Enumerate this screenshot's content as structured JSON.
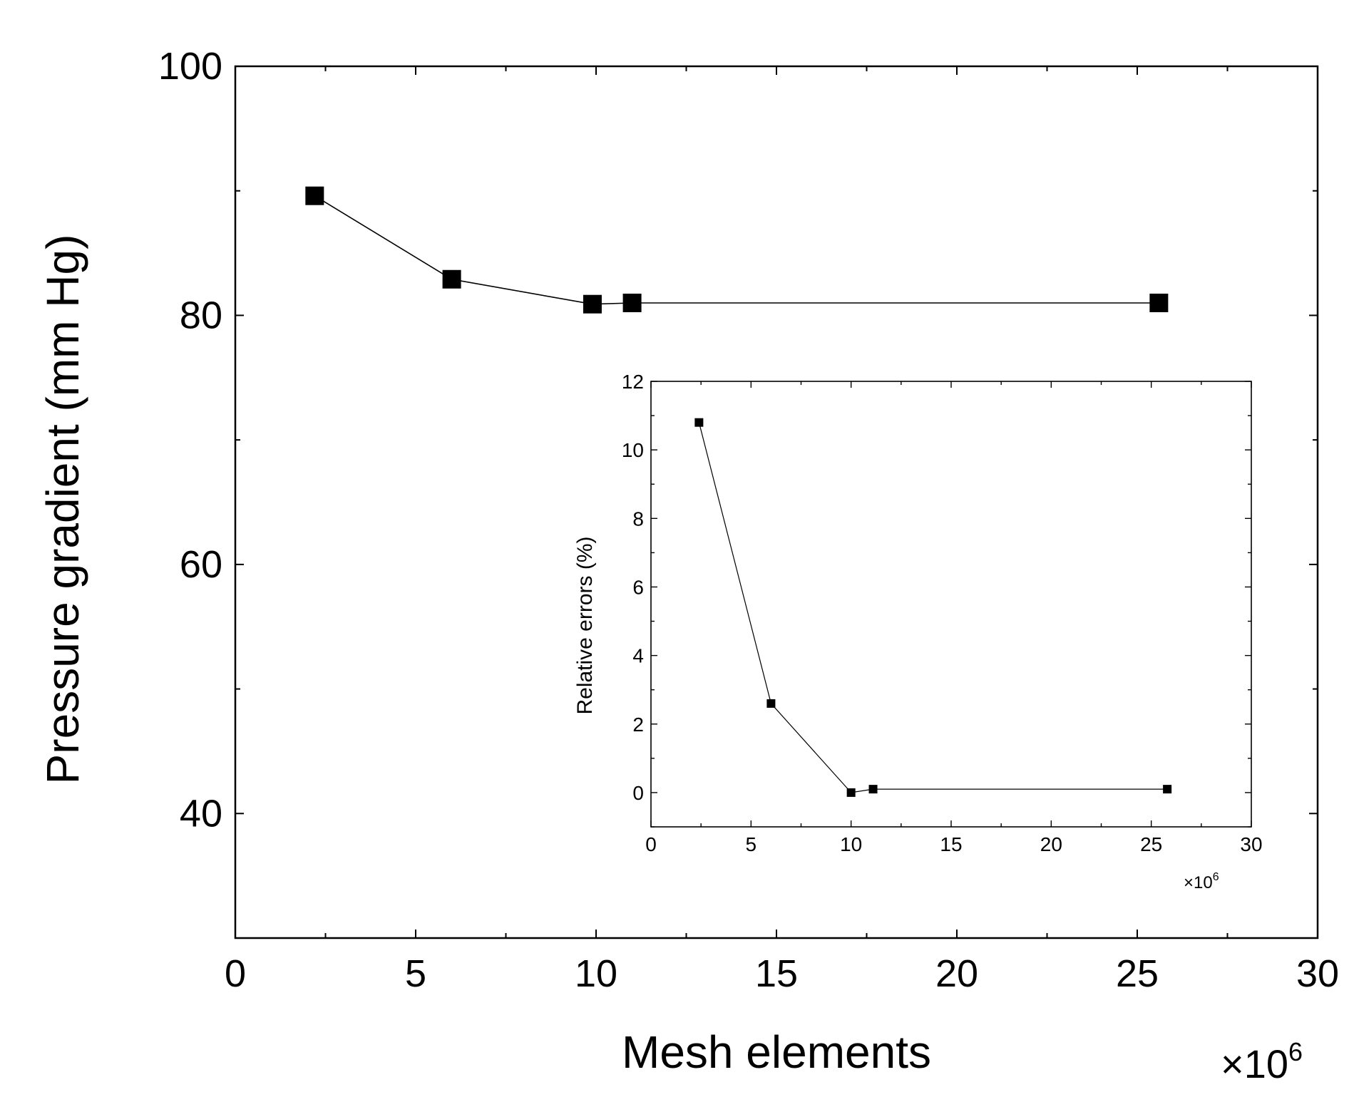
{
  "chart_data": [
    {
      "type": "line",
      "role": "main",
      "xlabel": "Mesh elements",
      "ylabel": "Pressure gradient (mm Hg)",
      "x_multiplier": "×10",
      "x_multiplier_exp": "6",
      "xlim": [
        0,
        30
      ],
      "ylim": [
        30,
        100
      ],
      "xticks": [
        0,
        5,
        10,
        15,
        20,
        25,
        30
      ],
      "yticks": [
        40,
        60,
        80,
        100
      ],
      "marker": "square",
      "series": [
        {
          "x": [
            2.2,
            6.0,
            9.9,
            11.0,
            25.6
          ],
          "y": [
            89.6,
            82.9,
            80.9,
            81.0,
            81.0
          ]
        }
      ],
      "grid": false
    },
    {
      "type": "line",
      "role": "inset",
      "xlabel": "",
      "ylabel": "Relative errors (%)",
      "x_multiplier": "×10",
      "x_multiplier_exp": "6",
      "xlim": [
        0,
        30
      ],
      "ylim": [
        -1,
        12
      ],
      "xticks": [
        0,
        5,
        10,
        15,
        20,
        25,
        30
      ],
      "yticks": [
        0,
        2,
        4,
        6,
        8,
        10,
        12
      ],
      "marker": "square",
      "series": [
        {
          "x": [
            2.4,
            6.0,
            10.0,
            11.1,
            25.8
          ],
          "y": [
            10.8,
            2.6,
            0.0,
            0.1,
            0.1
          ]
        }
      ],
      "grid": false
    }
  ]
}
